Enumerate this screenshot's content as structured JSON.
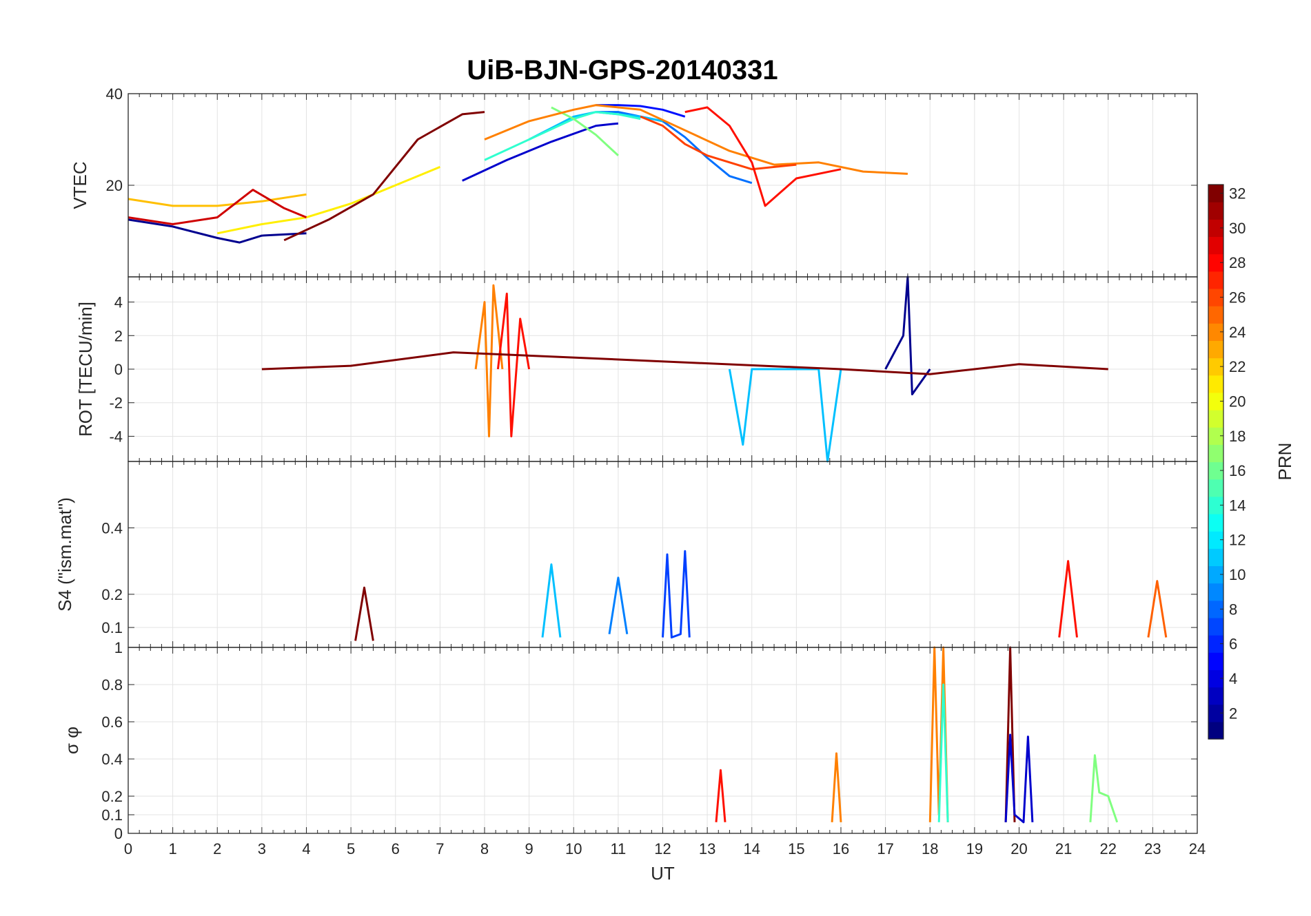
{
  "chart_data": [
    {
      "type": "line",
      "title": "UiB-BJN-GPS-20140331",
      "ylabel": "VTEC",
      "xlim": [
        0,
        24
      ],
      "ylim": [
        0,
        40
      ],
      "yticks": [
        "20",
        "40"
      ],
      "ytick_values": [
        20,
        40
      ],
      "grid": true,
      "series": [
        {
          "label": "PRN 1",
          "color": "#00008f",
          "x": [
            0.0,
            1.0,
            2.0,
            2.5,
            3.0,
            4.0
          ],
          "y": [
            12.5,
            11.0,
            8.5,
            7.5,
            9.0,
            9.5
          ]
        },
        {
          "label": "PRN 3",
          "color": "#0000cc",
          "x": [
            7.5,
            8.5,
            9.5,
            10.5,
            11.0
          ],
          "y": [
            21.0,
            25.5,
            29.5,
            33.0,
            33.5
          ]
        },
        {
          "label": "PRN 4",
          "color": "#0010ff",
          "x": [
            10.5,
            11.0,
            11.5,
            12.0,
            12.5
          ],
          "y": [
            37.5,
            37.5,
            37.3,
            36.5,
            35.0
          ]
        },
        {
          "label": "PRN 8",
          "color": "#0070ff",
          "x": [
            10.5,
            11.0,
            12.0,
            12.5,
            13.0,
            13.5,
            14.0
          ],
          "y": [
            36.0,
            36.0,
            34.0,
            30.5,
            26.0,
            22.0,
            20.5
          ]
        },
        {
          "label": "PRN 12",
          "color": "#00c0ff",
          "x": [
            9.0,
            9.5,
            10.0,
            10.5,
            11.0,
            11.5,
            12.0
          ],
          "y": [
            30.0,
            32.5,
            35.0,
            36.0,
            35.5,
            35.0,
            34.0
          ]
        },
        {
          "label": "PRN 14",
          "color": "#30ffcf",
          "x": [
            8.0,
            9.0,
            10.0,
            10.5,
            11.0,
            11.5
          ],
          "y": [
            25.5,
            30.0,
            34.5,
            36.0,
            35.5,
            34.5
          ]
        },
        {
          "label": "PRN 17",
          "color": "#80ff80",
          "x": [
            9.5,
            10.0,
            10.5,
            11.0
          ],
          "y": [
            37.0,
            34.5,
            31.0,
            26.5
          ]
        },
        {
          "label": "PRN 20",
          "color": "#ffef00",
          "x": [
            2.0,
            3.0,
            4.0,
            5.0,
            6.0,
            7.0
          ],
          "y": [
            9.5,
            11.5,
            13.0,
            16.0,
            20.0,
            24.0
          ]
        },
        {
          "label": "PRN 21",
          "color": "#ffbf00",
          "x": [
            0.0,
            1.0,
            2.0,
            3.0,
            4.0
          ],
          "y": [
            17.0,
            15.5,
            15.5,
            16.5,
            18.0
          ]
        },
        {
          "label": "PRN 24",
          "color": "#ff8000",
          "x": [
            8.0,
            9.0,
            10.0,
            10.5,
            11.5,
            12.5,
            13.5,
            14.5,
            15.5,
            16.5,
            17.5
          ],
          "y": [
            30.0,
            34.0,
            36.5,
            37.5,
            36.5,
            32.0,
            27.5,
            24.5,
            25.0,
            23.0,
            22.5
          ]
        },
        {
          "label": "PRN 27",
          "color": "#ff4000",
          "x": [
            11.5,
            12.0,
            12.5,
            13.0,
            14.0,
            15.0
          ],
          "y": [
            35.0,
            33.0,
            29.0,
            26.5,
            23.5,
            24.5
          ]
        },
        {
          "label": "PRN 28",
          "color": "#ff1000",
          "x": [
            12.5,
            13.0,
            13.5,
            14.0,
            14.3,
            15.0,
            16.0
          ],
          "y": [
            36.0,
            37.0,
            33.0,
            25.0,
            15.5,
            21.5,
            23.5
          ]
        },
        {
          "label": "PRN 30",
          "color": "#cf0000",
          "x": [
            0.0,
            1.0,
            2.0,
            2.8,
            3.5,
            4.0
          ],
          "y": [
            13.0,
            11.5,
            13.0,
            19.0,
            15.0,
            13.0
          ]
        },
        {
          "label": "PRN 32",
          "color": "#800000",
          "x": [
            3.5,
            4.5,
            5.5,
            6.5,
            7.5,
            8.0
          ],
          "y": [
            8.0,
            12.5,
            18.0,
            30.0,
            35.5,
            36.0
          ]
        }
      ]
    },
    {
      "type": "line",
      "ylabel": "ROT [TECU/min]",
      "xlim": [
        0,
        24
      ],
      "ylim": [
        -5.5,
        5.5
      ],
      "yticks": [
        "-4",
        "-2",
        "0",
        "2",
        "4"
      ],
      "ytick_values": [
        -4,
        -2,
        0,
        2,
        4
      ],
      "grid": true,
      "series": [
        {
          "label": "PRN 1",
          "color": "#00008f",
          "x": [
            17.0,
            17.4,
            17.5,
            17.6,
            18.0
          ],
          "y": [
            0.0,
            2.0,
            5.5,
            -1.5,
            0.0
          ]
        },
        {
          "label": "PRN 12",
          "color": "#00c0ff",
          "x": [
            13.5,
            13.8,
            14.0,
            15.5,
            15.7,
            16.0
          ],
          "y": [
            0.0,
            -4.5,
            0.0,
            0.0,
            -5.5,
            0.0
          ]
        },
        {
          "label": "PRN 24",
          "color": "#ff8000",
          "x": [
            7.8,
            8.0,
            8.1,
            8.2,
            8.4
          ],
          "y": [
            0.0,
            4.0,
            -4.0,
            5.0,
            0.0
          ]
        },
        {
          "label": "PRN 28",
          "color": "#ff1000",
          "x": [
            8.3,
            8.5,
            8.6,
            8.8,
            9.0
          ],
          "y": [
            0.0,
            4.5,
            -4.0,
            3.0,
            0.0
          ]
        },
        {
          "label": "PRN 32",
          "color": "#800000",
          "x": [
            3.0,
            5.0,
            7.3,
            16.0,
            18.0,
            20.0,
            22.0
          ],
          "y": [
            0.0,
            0.2,
            1.0,
            0.0,
            -0.3,
            0.3,
            0.0
          ]
        }
      ]
    },
    {
      "type": "line",
      "ylabel": "S4 (\"ism.mat\")",
      "xlim": [
        0,
        24
      ],
      "ylim": [
        0.04,
        0.6
      ],
      "yticks": [
        "0.1",
        "0.2",
        "0.4"
      ],
      "ytick_values": [
        0.1,
        0.2,
        0.4
      ],
      "grid": true,
      "series": [
        {
          "label": "PRN 6",
          "color": "#0040ff",
          "x": [
            12.0,
            12.1,
            12.2,
            12.4,
            12.5,
            12.6
          ],
          "y": [
            0.07,
            0.32,
            0.07,
            0.08,
            0.33,
            0.07
          ]
        },
        {
          "label": "PRN 12",
          "color": "#00c0ff",
          "x": [
            9.3,
            9.5,
            9.7
          ],
          "y": [
            0.07,
            0.29,
            0.07
          ]
        },
        {
          "label": "PRN 10",
          "color": "#0080ff",
          "x": [
            10.8,
            11.0,
            11.2
          ],
          "y": [
            0.08,
            0.25,
            0.08
          ]
        },
        {
          "label": "PRN 32",
          "color": "#800000",
          "x": [
            5.1,
            5.3,
            5.5
          ],
          "y": [
            0.06,
            0.22,
            0.06
          ]
        },
        {
          "label": "PRN 28",
          "color": "#ff1000",
          "x": [
            20.9,
            21.1,
            21.3
          ],
          "y": [
            0.07,
            0.3,
            0.07
          ]
        },
        {
          "label": "PRN 26",
          "color": "#ff6000",
          "x": [
            22.9,
            23.1,
            23.3
          ],
          "y": [
            0.07,
            0.24,
            0.07
          ]
        }
      ]
    },
    {
      "type": "line",
      "ylabel": "σ φ",
      "xlabel": "UT",
      "xlim": [
        0,
        24
      ],
      "ylim": [
        0,
        1
      ],
      "yticks": [
        "0",
        "0.1",
        "0.2",
        "0.4",
        "0.6",
        "0.8",
        "1"
      ],
      "ytick_values": [
        0,
        0.1,
        0.2,
        0.4,
        0.6,
        0.8,
        1
      ],
      "xticks": [
        "0",
        "1",
        "2",
        "3",
        "4",
        "5",
        "6",
        "7",
        "8",
        "9",
        "10",
        "11",
        "12",
        "13",
        "14",
        "15",
        "16",
        "17",
        "18",
        "19",
        "20",
        "21",
        "22",
        "23",
        "24"
      ],
      "grid": true,
      "series": [
        {
          "label": "PRN 24",
          "color": "#ff8000",
          "x": [
            18.0,
            18.1,
            18.2,
            18.3,
            18.4
          ],
          "y": [
            0.06,
            1.0,
            0.1,
            1.0,
            0.06
          ]
        },
        {
          "label": "PRN 14",
          "color": "#30ffcf",
          "x": [
            18.2,
            18.3,
            18.4
          ],
          "y": [
            0.06,
            0.8,
            0.06
          ]
        },
        {
          "label": "PRN 32",
          "color": "#800000",
          "x": [
            19.7,
            19.8,
            19.9
          ],
          "y": [
            0.06,
            1.0,
            0.06
          ]
        },
        {
          "label": "PRN 2",
          "color": "#0000cc",
          "x": [
            19.7,
            19.8,
            19.9,
            20.1,
            20.2,
            20.3
          ],
          "y": [
            0.06,
            0.53,
            0.1,
            0.06,
            0.52,
            0.06
          ]
        },
        {
          "label": "PRN 24",
          "color": "#ff8000",
          "x": [
            15.8,
            15.9,
            16.0
          ],
          "y": [
            0.06,
            0.43,
            0.06
          ]
        },
        {
          "label": "PRN 28",
          "color": "#ff1000",
          "x": [
            13.2,
            13.3,
            13.4
          ],
          "y": [
            0.06,
            0.34,
            0.06
          ]
        },
        {
          "label": "PRN 17",
          "color": "#80ff80",
          "x": [
            21.6,
            21.7,
            21.8,
            22.0,
            22.2
          ],
          "y": [
            0.06,
            0.42,
            0.22,
            0.2,
            0.06
          ]
        }
      ]
    }
  ],
  "colorbar": {
    "label": "PRN",
    "ticks": [
      "2",
      "4",
      "6",
      "8",
      "10",
      "12",
      "14",
      "16",
      "18",
      "20",
      "22",
      "24",
      "26",
      "28",
      "30",
      "32"
    ],
    "tick_values": [
      2,
      4,
      6,
      8,
      10,
      12,
      14,
      16,
      18,
      20,
      22,
      24,
      26,
      28,
      30,
      32
    ],
    "range": [
      1,
      32
    ],
    "colormap": "jet"
  }
}
